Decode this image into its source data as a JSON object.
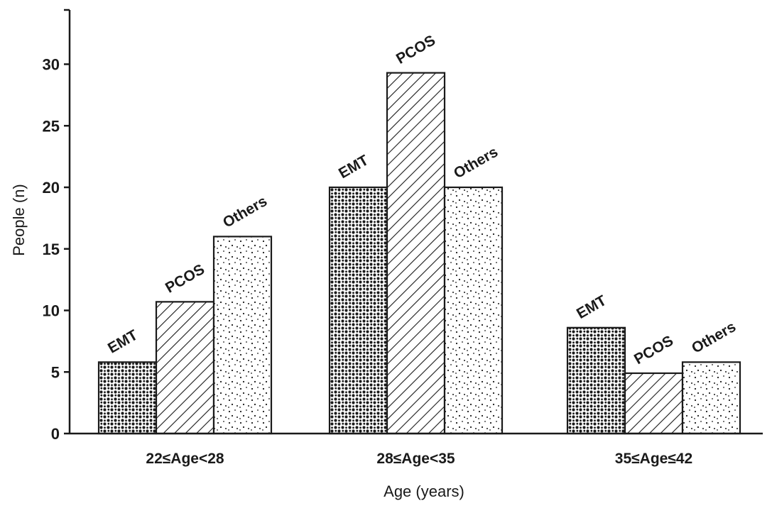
{
  "chart_data": {
    "type": "bar",
    "categories": [
      "22≤Age<28",
      "28≤Age<35",
      "35≤Age≤42"
    ],
    "series": [
      {
        "name": "EMT",
        "values": [
          5.8,
          20,
          8.6
        ]
      },
      {
        "name": "PCOS",
        "values": [
          10.7,
          29.3,
          4.9
        ]
      },
      {
        "name": "Others",
        "values": [
          16,
          20,
          5.8
        ]
      }
    ],
    "xlabel": "Age (years)",
    "ylabel": "People (n)",
    "ylim": [
      0,
      35
    ],
    "yticks": [
      0,
      5,
      10,
      15,
      20,
      25,
      30
    ],
    "grid": false,
    "series_fill": [
      "dense dots",
      "diagonal hatch",
      "sparse dots"
    ],
    "colors": {
      "ink": "#1a1a1a",
      "background": "#ffffff"
    }
  }
}
